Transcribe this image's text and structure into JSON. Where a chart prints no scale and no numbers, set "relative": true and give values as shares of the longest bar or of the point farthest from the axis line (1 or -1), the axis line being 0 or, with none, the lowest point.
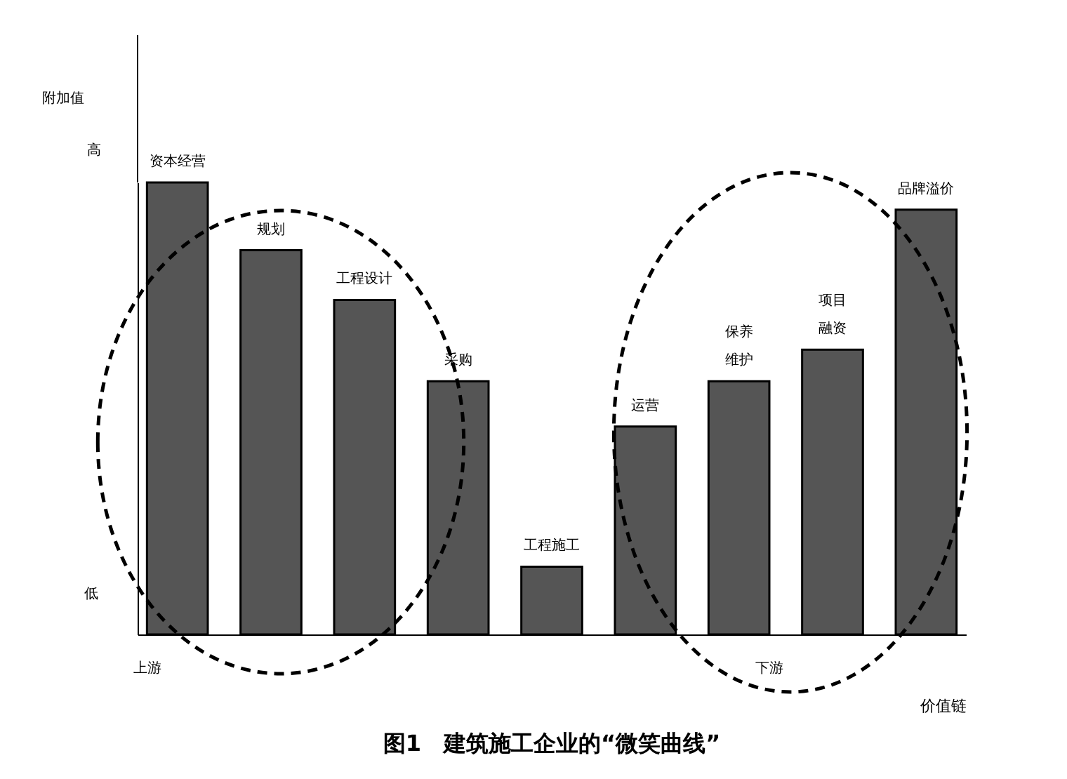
{
  "chart_data": {
    "type": "bar",
    "title": "图1　建筑施工企业的“微笑曲线”",
    "xlabel": "价值链",
    "categories": [
      "资本经营",
      "规划",
      "工程设计",
      "采购",
      "工程施工",
      "运营",
      "保养维护",
      "项目融资",
      "品牌溢价"
    ],
    "values": [
      1,
      0.85,
      0.74,
      0.56,
      0.15,
      0.46,
      0.56,
      0.63,
      0.94
    ],
    "color": "#555555",
    "relative": true,
    "tick_labels": false,
    "grid": false,
    "annotations": [
      "附加值",
      "高",
      "低",
      "上游",
      "下游"
    ]
  }
}
